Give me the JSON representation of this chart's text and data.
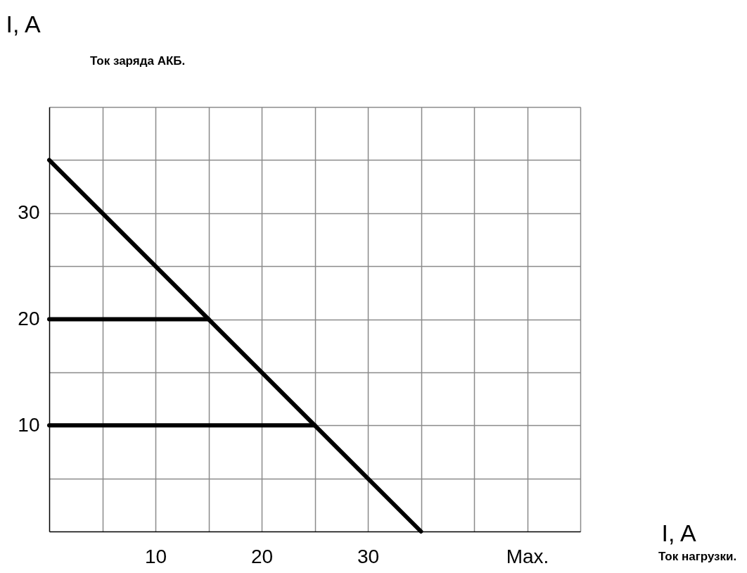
{
  "chart_data": {
    "type": "line",
    "xlabel": "I, A",
    "ylabel": "I, A",
    "annotations": [
      "Ток заряда АКБ.",
      "Ток нагрузки."
    ],
    "xlim": [
      0,
      50
    ],
    "ylim": [
      0,
      40
    ],
    "xticks": [
      {
        "value": 5,
        "label": null
      },
      10,
      {
        "value": 15,
        "label": null
      },
      20,
      {
        "value": 25,
        "label": null
      },
      30,
      {
        "value": 35,
        "label": null
      },
      {
        "value": 40,
        "label": null
      },
      {
        "value": 45,
        "label": "Max."
      },
      {
        "value": 50,
        "label": null
      }
    ],
    "yticks": [
      {
        "value": 5,
        "label": null
      },
      10,
      {
        "value": 15,
        "label": null
      },
      20,
      {
        "value": 25,
        "label": null
      },
      30,
      {
        "value": 35,
        "label": null
      },
      {
        "value": 40,
        "label": null
      }
    ],
    "grid": true,
    "marker": "none",
    "line_style": "solid",
    "series": [
      {
        "color": "#000000",
        "x": [
          0,
          35
        ],
        "values": [
          35,
          0
        ]
      },
      {
        "color": "#000000",
        "x": [
          0,
          15
        ],
        "values": [
          20,
          20
        ]
      },
      {
        "color": "#000000",
        "x": [
          0,
          25
        ],
        "values": [
          10,
          10
        ]
      }
    ]
  }
}
